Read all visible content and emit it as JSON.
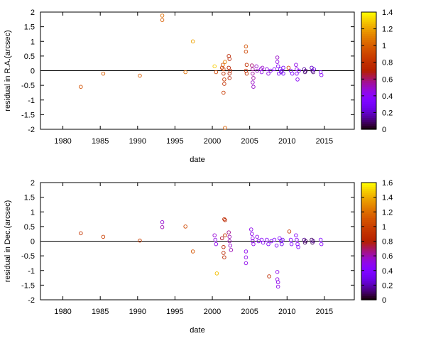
{
  "chart_data": [
    {
      "type": "scatter",
      "xlabel": "date",
      "ylabel": "residual in R.A.(arcsec)",
      "xlim": [
        1977,
        2019
      ],
      "ylim": [
        -2,
        2
      ],
      "xticks": [
        1980,
        1985,
        1990,
        1995,
        2000,
        2005,
        2010,
        2015
      ],
      "yticks": [
        -2,
        -1.5,
        -1,
        -0.5,
        0,
        0.5,
        1,
        1.5,
        2
      ],
      "zero_line": true,
      "grid": false,
      "colorbar": {
        "range": [
          0,
          1.4
        ],
        "ticks": [
          0,
          0.2,
          0.4,
          0.6,
          0.8,
          1,
          1.2,
          1.4
        ],
        "colormap": "gnuplot",
        "placement": "right"
      },
      "points": [
        {
          "x": 1982.4,
          "y": -0.55,
          "c": 0.95
        },
        {
          "x": 1985.4,
          "y": -0.1,
          "c": 1.0
        },
        {
          "x": 1990.3,
          "y": -0.17,
          "c": 1.0
        },
        {
          "x": 1993.3,
          "y": 1.88,
          "c": 1.05
        },
        {
          "x": 1993.3,
          "y": 1.73,
          "c": 1.0
        },
        {
          "x": 1996.4,
          "y": -0.05,
          "c": 1.05
        },
        {
          "x": 1997.4,
          "y": 1.0,
          "c": 1.2
        },
        {
          "x": 2000.3,
          "y": 0.15,
          "c": 1.3
        },
        {
          "x": 2000.5,
          "y": -0.05,
          "c": 0.9
        },
        {
          "x": 2001.3,
          "y": 0.1,
          "c": 0.85
        },
        {
          "x": 2001.4,
          "y": 0.2,
          "c": 0.95
        },
        {
          "x": 2001.5,
          "y": 0.05,
          "c": 0.9
        },
        {
          "x": 2001.5,
          "y": -0.1,
          "c": 0.8
        },
        {
          "x": 2001.6,
          "y": -0.3,
          "c": 0.85
        },
        {
          "x": 2001.6,
          "y": -0.45,
          "c": 0.8
        },
        {
          "x": 2001.5,
          "y": -0.75,
          "c": 0.85
        },
        {
          "x": 2001.7,
          "y": -1.95,
          "c": 1.0
        },
        {
          "x": 2001.7,
          "y": 0.3,
          "c": 1.1
        },
        {
          "x": 2002.2,
          "y": 0.5,
          "c": 0.75
        },
        {
          "x": 2002.3,
          "y": 0.4,
          "c": 0.7
        },
        {
          "x": 2002.2,
          "y": 0.1,
          "c": 0.7
        },
        {
          "x": 2002.3,
          "y": -0.1,
          "c": 0.7
        },
        {
          "x": 2002.3,
          "y": -0.25,
          "c": 0.7
        },
        {
          "x": 2002.4,
          "y": 0.0,
          "c": 0.75
        },
        {
          "x": 2004.5,
          "y": 0.83,
          "c": 0.95
        },
        {
          "x": 2004.5,
          "y": 0.65,
          "c": 0.9
        },
        {
          "x": 2004.6,
          "y": 0.2,
          "c": 0.8
        },
        {
          "x": 2004.5,
          "y": 0.0,
          "c": 0.75
        },
        {
          "x": 2004.6,
          "y": -0.1,
          "c": 0.8
        },
        {
          "x": 2005.3,
          "y": 0.18,
          "c": 0.6
        },
        {
          "x": 2005.4,
          "y": 0.05,
          "c": 0.55
        },
        {
          "x": 2005.4,
          "y": -0.1,
          "c": 0.55
        },
        {
          "x": 2005.5,
          "y": -0.25,
          "c": 0.55
        },
        {
          "x": 2005.4,
          "y": -0.4,
          "c": 0.5
        },
        {
          "x": 2005.5,
          "y": -0.55,
          "c": 0.5
        },
        {
          "x": 2005.9,
          "y": 0.15,
          "c": 0.5
        },
        {
          "x": 2006.0,
          "y": 0.0,
          "c": 0.5
        },
        {
          "x": 2006.5,
          "y": 0.05,
          "c": 0.45
        },
        {
          "x": 2006.6,
          "y": -0.05,
          "c": 0.45
        },
        {
          "x": 2006.7,
          "y": 0.1,
          "c": 0.5
        },
        {
          "x": 2007.3,
          "y": 0.05,
          "c": 0.45
        },
        {
          "x": 2007.5,
          "y": -0.1,
          "c": 0.45
        },
        {
          "x": 2007.8,
          "y": 0.0,
          "c": 0.4
        },
        {
          "x": 2008.3,
          "y": 0.05,
          "c": 0.4
        },
        {
          "x": 2008.7,
          "y": 0.45,
          "c": 0.5
        },
        {
          "x": 2008.7,
          "y": 0.3,
          "c": 0.45
        },
        {
          "x": 2008.8,
          "y": 0.15,
          "c": 0.4
        },
        {
          "x": 2008.9,
          "y": -0.1,
          "c": 0.35
        },
        {
          "x": 2009.1,
          "y": 0.05,
          "c": 0.3
        },
        {
          "x": 2009.2,
          "y": -0.05,
          "c": 0.25
        },
        {
          "x": 2009.3,
          "y": 0.0,
          "c": 0.2
        },
        {
          "x": 2009.5,
          "y": 0.1,
          "c": 0.3
        },
        {
          "x": 2009.5,
          "y": -0.1,
          "c": 0.3
        },
        {
          "x": 2010.2,
          "y": 0.1,
          "c": 0.9
        },
        {
          "x": 2010.5,
          "y": 0.0,
          "c": 0.3
        },
        {
          "x": 2010.7,
          "y": -0.1,
          "c": 0.35
        },
        {
          "x": 2011.2,
          "y": 0.2,
          "c": 0.45
        },
        {
          "x": 2011.3,
          "y": 0.05,
          "c": 0.45
        },
        {
          "x": 2011.3,
          "y": -0.1,
          "c": 0.4
        },
        {
          "x": 2011.4,
          "y": -0.3,
          "c": 0.4
        },
        {
          "x": 2011.6,
          "y": 0.0,
          "c": 0.4
        },
        {
          "x": 2012.3,
          "y": 0.05,
          "c": 0.15
        },
        {
          "x": 2012.4,
          "y": -0.05,
          "c": 0.1
        },
        {
          "x": 2012.5,
          "y": 0.0,
          "c": 0.1
        },
        {
          "x": 2013.3,
          "y": 0.1,
          "c": 0.2
        },
        {
          "x": 2013.4,
          "y": 0.0,
          "c": 0.15
        },
        {
          "x": 2013.5,
          "y": -0.05,
          "c": 0.1
        },
        {
          "x": 2013.6,
          "y": 0.05,
          "c": 0.25
        },
        {
          "x": 2014.5,
          "y": -0.05,
          "c": 0.35
        },
        {
          "x": 2014.6,
          "y": -0.15,
          "c": 0.4
        }
      ]
    },
    {
      "type": "scatter",
      "xlabel": "date",
      "ylabel": "residual in Dec.(arcsec)",
      "xlim": [
        1977,
        2019
      ],
      "ylim": [
        -2,
        2
      ],
      "xticks": [
        1980,
        1985,
        1990,
        1995,
        2000,
        2005,
        2010,
        2015
      ],
      "yticks": [
        -2,
        -1.5,
        -1,
        -0.5,
        0,
        0.5,
        1,
        1.5,
        2
      ],
      "zero_line": true,
      "grid": false,
      "colorbar": {
        "range": [
          0,
          1.6
        ],
        "ticks": [
          0,
          0.2,
          0.4,
          0.6,
          0.8,
          1,
          1.2,
          1.4,
          1.6
        ],
        "colormap": "gnuplot",
        "placement": "right"
      },
      "points": [
        {
          "x": 1982.4,
          "y": 0.27,
          "c": 0.95
        },
        {
          "x": 1985.4,
          "y": 0.15,
          "c": 1.0
        },
        {
          "x": 1990.3,
          "y": 0.02,
          "c": 1.0
        },
        {
          "x": 1993.3,
          "y": 0.65,
          "c": 0.55
        },
        {
          "x": 1993.3,
          "y": 0.48,
          "c": 0.6
        },
        {
          "x": 1996.4,
          "y": 0.5,
          "c": 1.05
        },
        {
          "x": 1997.4,
          "y": -0.35,
          "c": 1.1
        },
        {
          "x": 2000.3,
          "y": 0.2,
          "c": 0.55
        },
        {
          "x": 2000.4,
          "y": 0.05,
          "c": 0.5
        },
        {
          "x": 2000.5,
          "y": -0.1,
          "c": 0.5
        },
        {
          "x": 2000.6,
          "y": -1.1,
          "c": 1.45
        },
        {
          "x": 2001.3,
          "y": 0.1,
          "c": 0.75
        },
        {
          "x": 2001.5,
          "y": -0.2,
          "c": 0.8
        },
        {
          "x": 2001.5,
          "y": -0.4,
          "c": 0.85
        },
        {
          "x": 2001.6,
          "y": -0.55,
          "c": 0.85
        },
        {
          "x": 2001.6,
          "y": 0.75,
          "c": 0.9
        },
        {
          "x": 2001.7,
          "y": 0.72,
          "c": 0.85
        },
        {
          "x": 2001.7,
          "y": 0.2,
          "c": 0.9
        },
        {
          "x": 2002.2,
          "y": 0.3,
          "c": 0.65
        },
        {
          "x": 2002.3,
          "y": 0.15,
          "c": 0.6
        },
        {
          "x": 2002.3,
          "y": 0.0,
          "c": 0.6
        },
        {
          "x": 2002.4,
          "y": -0.15,
          "c": 0.55
        },
        {
          "x": 2002.5,
          "y": -0.3,
          "c": 0.6
        },
        {
          "x": 2004.5,
          "y": -0.35,
          "c": 0.5
        },
        {
          "x": 2004.5,
          "y": -0.55,
          "c": 0.5
        },
        {
          "x": 2004.5,
          "y": -0.75,
          "c": 0.5
        },
        {
          "x": 2005.2,
          "y": 0.4,
          "c": 0.5
        },
        {
          "x": 2005.3,
          "y": 0.25,
          "c": 0.5
        },
        {
          "x": 2005.4,
          "y": 0.1,
          "c": 0.5
        },
        {
          "x": 2005.4,
          "y": 0.0,
          "c": 0.5
        },
        {
          "x": 2005.5,
          "y": -0.1,
          "c": 0.5
        },
        {
          "x": 2006.0,
          "y": 0.15,
          "c": 0.5
        },
        {
          "x": 2006.2,
          "y": 0.0,
          "c": 0.45
        },
        {
          "x": 2006.6,
          "y": 0.05,
          "c": 0.45
        },
        {
          "x": 2006.8,
          "y": -0.05,
          "c": 0.45
        },
        {
          "x": 2007.3,
          "y": 0.05,
          "c": 0.45
        },
        {
          "x": 2007.5,
          "y": -0.1,
          "c": 0.4
        },
        {
          "x": 2007.6,
          "y": -1.2,
          "c": 0.9
        },
        {
          "x": 2007.9,
          "y": 0.0,
          "c": 0.45
        },
        {
          "x": 2008.3,
          "y": 0.05,
          "c": 0.4
        },
        {
          "x": 2008.6,
          "y": -0.15,
          "c": 0.4
        },
        {
          "x": 2008.7,
          "y": -1.05,
          "c": 0.5
        },
        {
          "x": 2008.7,
          "y": -1.3,
          "c": 0.5
        },
        {
          "x": 2008.8,
          "y": -1.4,
          "c": 0.5
        },
        {
          "x": 2008.8,
          "y": -1.55,
          "c": 0.5
        },
        {
          "x": 2009.0,
          "y": 0.1,
          "c": 0.4
        },
        {
          "x": 2009.2,
          "y": 0.0,
          "c": 0.35
        },
        {
          "x": 2009.3,
          "y": -0.1,
          "c": 0.3
        },
        {
          "x": 2009.4,
          "y": 0.05,
          "c": 0.3
        },
        {
          "x": 2010.3,
          "y": 0.33,
          "c": 0.95
        },
        {
          "x": 2010.5,
          "y": 0.05,
          "c": 0.4
        },
        {
          "x": 2010.6,
          "y": -0.1,
          "c": 0.4
        },
        {
          "x": 2011.2,
          "y": 0.2,
          "c": 0.45
        },
        {
          "x": 2011.3,
          "y": 0.05,
          "c": 0.45
        },
        {
          "x": 2011.4,
          "y": -0.1,
          "c": 0.45
        },
        {
          "x": 2011.5,
          "y": -0.2,
          "c": 0.4
        },
        {
          "x": 2012.3,
          "y": 0.05,
          "c": 0.15
        },
        {
          "x": 2012.4,
          "y": -0.05,
          "c": 0.1
        },
        {
          "x": 2012.5,
          "y": 0.0,
          "c": 0.1
        },
        {
          "x": 2013.3,
          "y": 0.05,
          "c": 0.1
        },
        {
          "x": 2013.4,
          "y": -0.05,
          "c": 0.1
        },
        {
          "x": 2013.5,
          "y": 0.0,
          "c": 0.15
        },
        {
          "x": 2014.5,
          "y": 0.05,
          "c": 0.4
        },
        {
          "x": 2014.6,
          "y": -0.1,
          "c": 0.45
        }
      ]
    }
  ]
}
